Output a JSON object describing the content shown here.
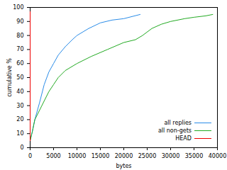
{
  "chart_data": {
    "type": "line",
    "x_label": "bytes",
    "y_label": "cumulative %",
    "xlim": [
      0,
      40000
    ],
    "xticks": [
      0,
      5000,
      10000,
      15000,
      20000,
      25000,
      30000,
      35000,
      40000
    ],
    "ylim": [
      0,
      100
    ],
    "yticks": [
      0,
      10,
      20,
      30,
      40,
      50,
      60,
      70,
      80,
      90,
      100
    ],
    "grid": false,
    "legend": "lower right",
    "series": [
      {
        "name": "all replies",
        "color": "#2a8ce8",
        "x": [
          0,
          500,
          1000,
          2000,
          3000,
          4000,
          5000,
          6000,
          7500,
          9000,
          10000,
          12500,
          15000,
          17500,
          20000,
          23500
        ],
        "values": [
          5,
          12,
          20,
          32,
          45,
          54,
          60,
          66,
          72,
          77,
          80,
          85,
          89,
          91,
          92,
          95
        ]
      },
      {
        "name": "all non-gets",
        "color": "#22aa22",
        "x": [
          0,
          500,
          1000,
          2500,
          4000,
          5000,
          6000,
          7500,
          10000,
          13000,
          16500,
          20000,
          22500,
          24000,
          26000,
          28000,
          30000,
          33000,
          35000,
          37500,
          39000
        ],
        "values": [
          5,
          12,
          20,
          30,
          40,
          45,
          50,
          55,
          60,
          65,
          70,
          75,
          77,
          80,
          85,
          88,
          90,
          92,
          93,
          94,
          95
        ]
      },
      {
        "name": "HEAD",
        "color": "#ee0000",
        "x": [
          0,
          0
        ],
        "values": [
          5,
          97
        ]
      }
    ]
  }
}
